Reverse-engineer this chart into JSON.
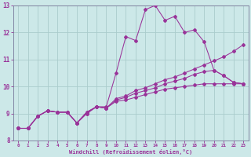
{
  "xlabel": "Windchill (Refroidissement éolien,°C)",
  "ylabel": "",
  "bg_color": "#cce8e8",
  "grid_color": "#aacccc",
  "line_color": "#993399",
  "xlim": [
    -0.5,
    23.5
  ],
  "ylim": [
    8,
    13
  ],
  "xticks": [
    0,
    1,
    2,
    3,
    4,
    5,
    6,
    7,
    8,
    9,
    10,
    11,
    12,
    13,
    14,
    15,
    16,
    17,
    18,
    19,
    20,
    21,
    22,
    23
  ],
  "yticks": [
    8,
    9,
    10,
    11,
    12,
    13
  ],
  "series": [
    {
      "x": [
        0,
        1,
        2,
        3,
        4,
        5,
        6,
        7,
        8,
        9,
        10,
        11,
        12,
        13,
        14,
        15,
        16,
        17,
        18,
        19,
        20,
        21,
        22,
        23
      ],
      "y": [
        8.45,
        8.45,
        8.9,
        9.1,
        9.05,
        9.05,
        8.65,
        9.05,
        9.25,
        9.25,
        10.5,
        11.85,
        11.7,
        12.85,
        13.0,
        12.45,
        12.6,
        12.0,
        12.1,
        11.65,
        10.6,
        10.4,
        10.15,
        10.1
      ]
    },
    {
      "x": [
        0,
        1,
        2,
        3,
        4,
        5,
        6,
        7,
        8,
        9,
        10,
        11,
        12,
        13,
        14,
        15,
        16,
        17,
        18,
        19,
        20,
        21,
        22,
        23
      ],
      "y": [
        8.45,
        8.45,
        8.9,
        9.1,
        9.05,
        9.05,
        8.65,
        9.05,
        9.25,
        9.2,
        9.5,
        9.6,
        9.75,
        9.85,
        9.95,
        10.1,
        10.2,
        10.3,
        10.45,
        10.55,
        10.6,
        10.4,
        10.15,
        10.1
      ]
    },
    {
      "x": [
        0,
        1,
        2,
        3,
        4,
        5,
        6,
        7,
        8,
        9,
        10,
        11,
        12,
        13,
        14,
        15,
        16,
        17,
        18,
        19,
        20,
        21,
        22,
        23
      ],
      "y": [
        8.45,
        8.45,
        8.9,
        9.1,
        9.05,
        9.05,
        8.65,
        9.0,
        9.25,
        9.2,
        9.55,
        9.65,
        9.85,
        9.95,
        10.1,
        10.25,
        10.35,
        10.5,
        10.65,
        10.8,
        10.95,
        11.1,
        11.3,
        11.55
      ]
    },
    {
      "x": [
        0,
        1,
        2,
        3,
        4,
        5,
        6,
        7,
        8,
        9,
        10,
        11,
        12,
        13,
        14,
        15,
        16,
        17,
        18,
        19,
        20,
        21,
        22,
        23
      ],
      "y": [
        8.45,
        8.45,
        8.9,
        9.1,
        9.05,
        9.05,
        8.65,
        9.0,
        9.25,
        9.2,
        9.45,
        9.5,
        9.6,
        9.7,
        9.8,
        9.9,
        9.95,
        10.0,
        10.05,
        10.1,
        10.1,
        10.1,
        10.1,
        10.1
      ]
    }
  ]
}
